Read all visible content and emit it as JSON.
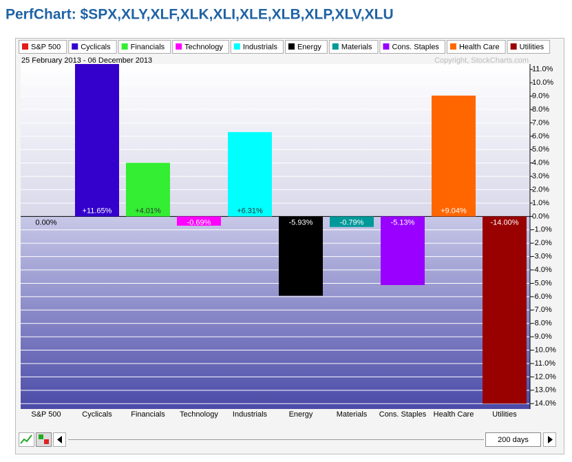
{
  "chart_data": {
    "type": "bar",
    "title": "PerfChart: $SPX,XLY,XLF,XLK,XLI,XLE,XLB,XLP,XLV,XLU",
    "subtitle": "25 February 2013 - 06 December 2013",
    "credit": "Copyright, StockCharts.com",
    "period": "200 days",
    "categories": [
      "S&P 500",
      "Cyclicals",
      "Financials",
      "Technology",
      "Industrials",
      "Energy",
      "Materials",
      "Cons. Staples",
      "Health Care",
      "Utilities"
    ],
    "values": [
      0,
      11.65,
      4.01,
      -0.69,
      6.31,
      -5.93,
      -0.79,
      -5.13,
      9.04,
      -14.0
    ],
    "value_labels": [
      "0.00%",
      "+11.65%",
      "+4.01%",
      "-0.69%",
      "+6.31%",
      "-5.93%",
      "-0.79%",
      "-5.13%",
      "+9.04%",
      "-14.00%"
    ],
    "colors": [
      "#e31b1b",
      "#3300cc",
      "#33ee33",
      "#ff00ff",
      "#00ffff",
      "#000000",
      "#009999",
      "#9900ff",
      "#ff6600",
      "#990000"
    ],
    "ylim": [
      -14.4,
      11.4
    ],
    "yticks": [
      {
        "value": 11,
        "label": "11.0%"
      },
      {
        "value": 10,
        "label": "10.0%"
      },
      {
        "value": 9,
        "label": "9.0%"
      },
      {
        "value": 8,
        "label": "8.0%"
      },
      {
        "value": 7,
        "label": "7.0%"
      },
      {
        "value": 6,
        "label": "6.0%"
      },
      {
        "value": 5,
        "label": "5.0%"
      },
      {
        "value": 4,
        "label": "4.0%"
      },
      {
        "value": 3,
        "label": "3.0%"
      },
      {
        "value": 2,
        "label": "2.0%"
      },
      {
        "value": 1,
        "label": "1.0%"
      },
      {
        "value": 0,
        "label": "0.0%"
      },
      {
        "value": -1,
        "label": "-1.0%"
      },
      {
        "value": -2,
        "label": "-2.0%"
      },
      {
        "value": -3,
        "label": "-3.0%"
      },
      {
        "value": -4,
        "label": "-4.0%"
      },
      {
        "value": -5,
        "label": "-5.0%"
      },
      {
        "value": -6,
        "label": "-6.0%"
      },
      {
        "value": -7,
        "label": "-7.0%"
      },
      {
        "value": -8,
        "label": "-8.0%"
      },
      {
        "value": -9,
        "label": "-9.0%"
      },
      {
        "value": -10,
        "label": "-10.0%"
      },
      {
        "value": -11,
        "label": "-11.0%"
      },
      {
        "value": -12,
        "label": "-12.0%"
      },
      {
        "value": -13,
        "label": "-13.0%"
      },
      {
        "value": -14,
        "label": "-14.0%"
      }
    ],
    "grid": true
  }
}
